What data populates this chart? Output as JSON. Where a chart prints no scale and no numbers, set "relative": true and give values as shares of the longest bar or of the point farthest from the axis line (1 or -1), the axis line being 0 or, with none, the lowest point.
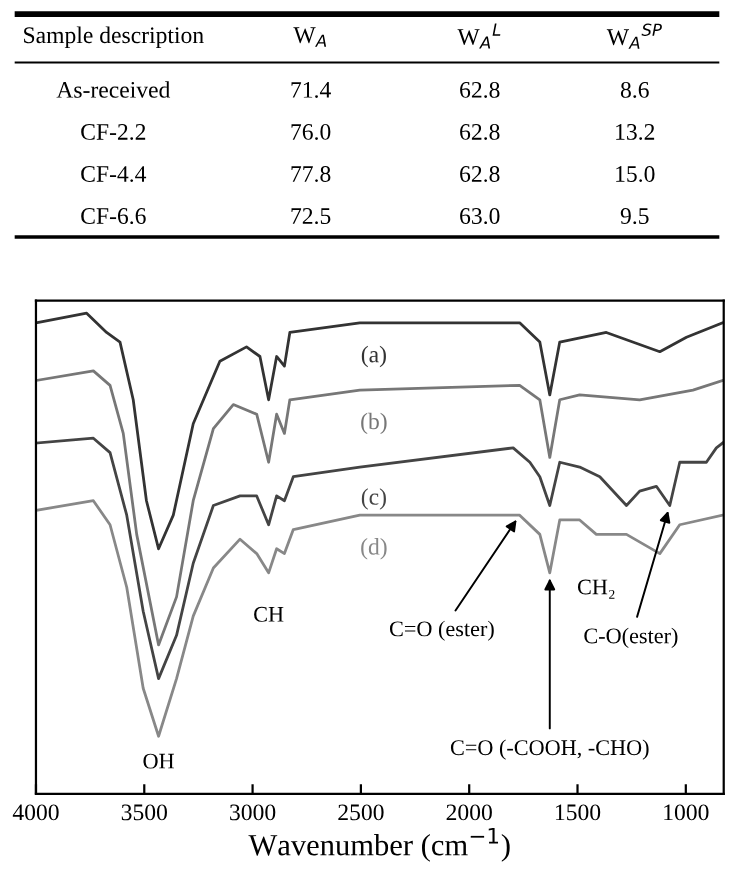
{
  "chart_data": [
    {
      "type": "other",
      "annotations": [
        "Sample description",
        "W$_{A}$",
        "W$_{A}$$^{L}$",
        "W$_{A}$$^{SP}$",
        "As-received",
        "71.4",
        "62.8",
        "8.6",
        "CF-2.2",
        "76.0",
        "62.8",
        "13.2",
        "CF-4.4",
        "77.8",
        "62.8",
        "15.0",
        "CF-6.6",
        "72.5",
        "63.0",
        "9.5"
      ]
    },
    {
      "type": "line",
      "relative": true,
      "xlabel": "Wavenumber (cm$^{−1}$)",
      "xlim": [
        4000,
        825
      ],
      "xticks": [
        4000,
        3500,
        3000,
        2500,
        2000,
        1500,
        1000
      ],
      "tick_labels": "x",
      "line_style": "solid",
      "series": [
        {
          "name": "(a)",
          "color": "#333333",
          "x": [
            4000,
            3766,
            3674,
            3612,
            3551,
            3490,
            3434,
            3366,
            3274,
            3151,
            3028,
            2966,
            2926,
            2889,
            2853,
            2828,
            2505,
            1767,
            1674,
            1628,
            1582,
            1367,
            1120,
            997,
            830
          ],
          "values": [
            0.98,
            1.0,
            0.96,
            0.94,
            0.82,
            0.61,
            0.51,
            0.58,
            0.77,
            0.9,
            0.93,
            0.91,
            0.82,
            0.91,
            0.89,
            0.96,
            0.98,
            0.98,
            0.94,
            0.83,
            0.94,
            0.96,
            0.92,
            0.95,
            0.98
          ]
        },
        {
          "name": "(b)",
          "color": "#777777",
          "x": [
            4000,
            3735,
            3658,
            3597,
            3535,
            3434,
            3351,
            3274,
            3181,
            3089,
            2981,
            2926,
            2889,
            2853,
            2828,
            2505,
            1767,
            1674,
            1628,
            1582,
            1490,
            1213,
            967,
            830
          ],
          "values": [
            0.86,
            0.88,
            0.85,
            0.75,
            0.54,
            0.31,
            0.41,
            0.61,
            0.76,
            0.81,
            0.79,
            0.69,
            0.79,
            0.75,
            0.82,
            0.84,
            0.85,
            0.82,
            0.7,
            0.82,
            0.83,
            0.82,
            0.84,
            0.86
          ]
        },
        {
          "name": "(c)",
          "color": "#444444",
          "x": [
            4000,
            3735,
            3658,
            3581,
            3505,
            3434,
            3351,
            3274,
            3181,
            3058,
            2981,
            2926,
            2889,
            2853,
            2812,
            2505,
            1797,
            1720,
            1674,
            1628,
            1582,
            1490,
            1397,
            1274,
            1213,
            1136,
            1074,
            1028,
            905,
            859,
            830
          ],
          "values": [
            0.73,
            0.74,
            0.71,
            0.58,
            0.38,
            0.24,
            0.33,
            0.48,
            0.6,
            0.62,
            0.62,
            0.56,
            0.62,
            0.61,
            0.66,
            0.68,
            0.72,
            0.69,
            0.66,
            0.6,
            0.69,
            0.68,
            0.66,
            0.6,
            0.63,
            0.64,
            0.6,
            0.69,
            0.69,
            0.72,
            0.73
          ]
        },
        {
          "name": "(d)",
          "color": "#888888",
          "x": [
            4000,
            3735,
            3658,
            3581,
            3505,
            3434,
            3351,
            3274,
            3181,
            3058,
            2981,
            2926,
            2889,
            2853,
            2812,
            2505,
            1767,
            1674,
            1628,
            1582,
            1490,
            1413,
            1274,
            1120,
            1028,
            830
          ],
          "values": [
            0.59,
            0.61,
            0.56,
            0.43,
            0.22,
            0.12,
            0.24,
            0.37,
            0.47,
            0.53,
            0.5,
            0.46,
            0.51,
            0.5,
            0.55,
            0.58,
            0.58,
            0.54,
            0.46,
            0.57,
            0.57,
            0.54,
            0.54,
            0.5,
            0.56,
            0.58
          ]
        }
      ],
      "annotations": [
        {
          "text": "OH",
          "x": 3434,
          "y": 0.12
        },
        {
          "text": "CH",
          "x": 2926,
          "y": 0.46
        },
        {
          "text": "C=O (ester)",
          "x": 1767,
          "y": 0.58
        },
        {
          "text": "CH₂",
          "x": 1413,
          "y": 0.54
        },
        {
          "text": "C=O (-COOH, -CHO)",
          "x": 1628,
          "y": 0.46
        },
        {
          "text": "C-O(ester)",
          "x": 1074,
          "y": 0.6
        }
      ]
    }
  ]
}
